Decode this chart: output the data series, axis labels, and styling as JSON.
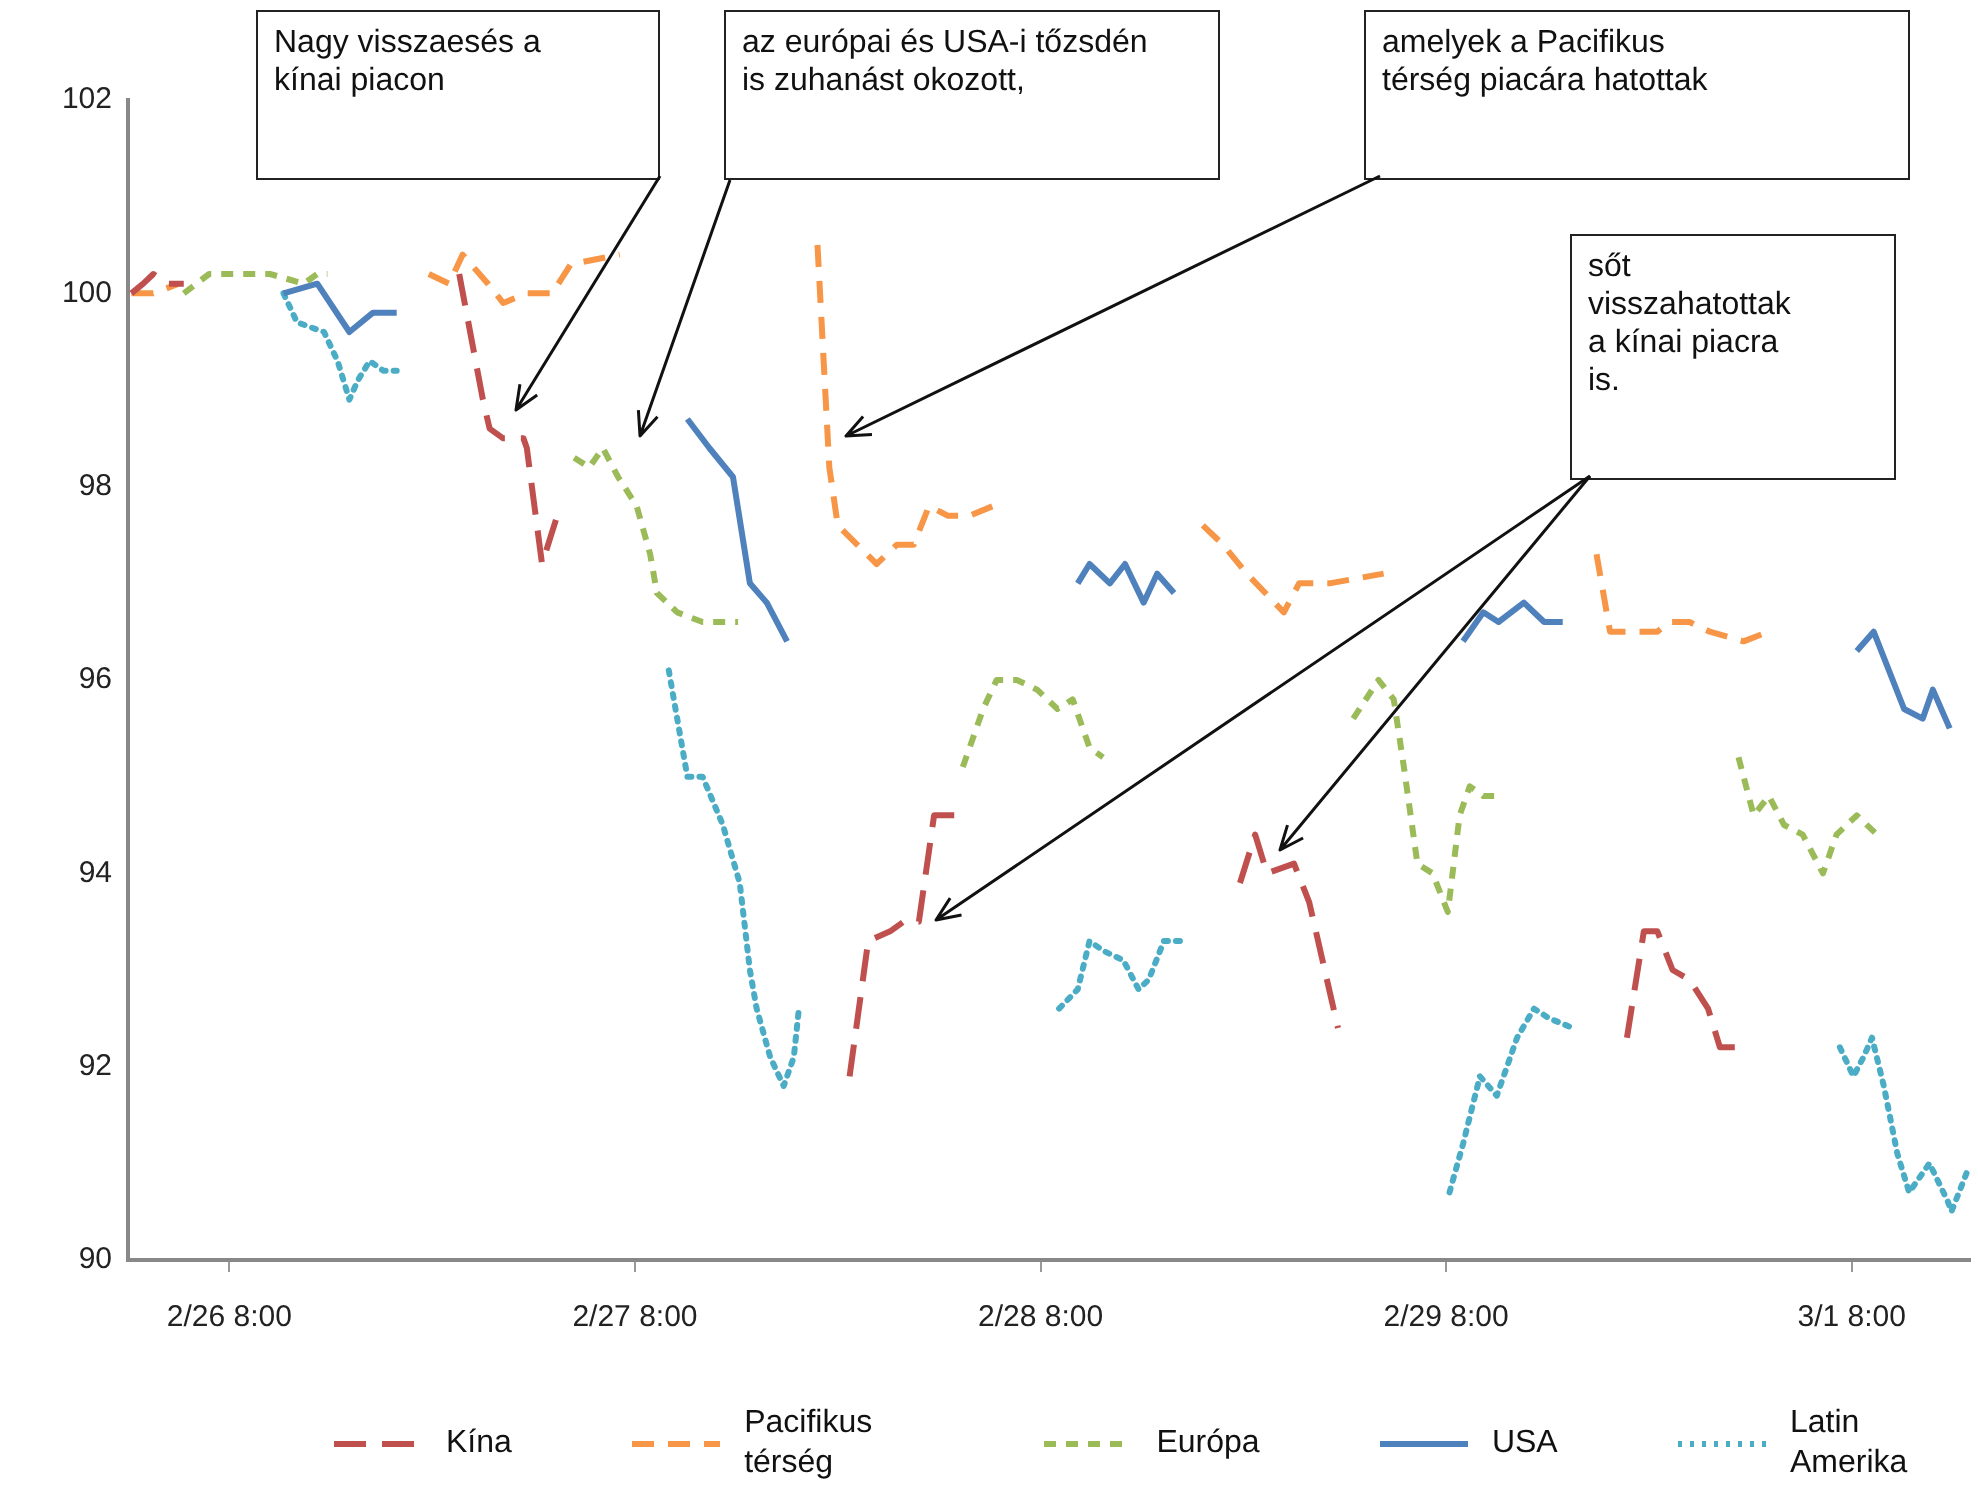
{
  "chart_data": {
    "type": "line",
    "xlim": [
      "--02-26T02:00",
      "--03-01T15:00"
    ],
    "xticks": [
      {
        "value": "--02-26T08:00",
        "label": "2/26 8:00"
      },
      {
        "value": "--02-27T08:00",
        "label": "2/27 8:00"
      },
      {
        "value": "--02-28T08:00",
        "label": "2/28 8:00"
      },
      {
        "value": "--02-29T08:00",
        "label": "2/29 8:00"
      },
      {
        "value": "--03-01T08:00",
        "label": "3/1 8:00"
      }
    ],
    "ylim": [
      90,
      102
    ],
    "yticks": [
      90,
      92,
      94,
      96,
      98,
      100,
      102
    ],
    "grid": false,
    "legend": "bottom",
    "series": [
      {
        "name": "Kína",
        "color": "#c0504d",
        "line_style": "dashed",
        "x": [
          "--02-26T02:12",
          "--02-26T02:54",
          "--02-26T03:30",
          "--02-26T04:18",
          "--02-26T05:18",
          "--02-26T13:00",
          "--02-26T21:36",
          "--02-26T23:00",
          "--02-26T23:24",
          "--02-27T00:12",
          "--02-27T01:24",
          "--02-27T01:36",
          "--02-27T02:30",
          "--02-27T03:24",
          "--02-27T12:00",
          "--02-27T20:42",
          "--02-27T21:48",
          "--02-27T23:06",
          "--02-27T23:54",
          "--02-28T00:48",
          "--02-28T01:42",
          "--02-28T03:24",
          "--02-28T12:00",
          "--02-28T19:48",
          "--02-28T20:42",
          "--02-28T21:24",
          "--02-28T23:00",
          "--02-28T23:54",
          "--02-29T01:36",
          "--02-29T10:00",
          "--02-29T18:42",
          "--02-29T19:42",
          "--02-29T20:30",
          "--02-29T21:24",
          "--02-29T22:24",
          "--02-29T23:30",
          "--03-01T00:12",
          "--03-01T01:36"
        ],
        "values": [
          100.0,
          100.1,
          100.2,
          100.1,
          100.1,
          null,
          100.2,
          98.9,
          98.6,
          98.5,
          98.5,
          98.4,
          97.2,
          97.7,
          null,
          91.9,
          93.3,
          93.4,
          93.5,
          93.5,
          94.6,
          94.6,
          null,
          93.9,
          94.4,
          94.0,
          94.1,
          93.7,
          92.4,
          null,
          92.3,
          93.4,
          93.4,
          93.0,
          92.9,
          92.6,
          92.2,
          92.2
        ]
      },
      {
        "name": "Pacifikus térség",
        "color": "#f79646",
        "line_style": "dashed",
        "x": [
          "--02-26T02:12",
          "--02-26T03:30",
          "--02-26T05:00",
          "--02-26T12:00",
          "--02-26T19:48",
          "--02-26T21:00",
          "--02-26T21:48",
          "--02-26T23:18",
          "--02-27T00:12",
          "--02-27T01:36",
          "--02-27T03:06",
          "--02-27T04:12",
          "--02-27T07:06",
          "--02-27T13:00",
          "--02-27T18:48",
          "--02-27T19:30",
          "--02-27T20:00",
          "--02-27T22:18",
          "--02-27T23:30",
          "--02-28T00:30",
          "--02-28T01:24",
          "--02-28T02:30",
          "--02-28T03:48",
          "--02-28T05:12",
          "--02-28T12:00",
          "--02-28T17:36",
          "--02-28T18:48",
          "--02-28T20:12",
          "--02-28T22:24",
          "--02-28T23:18",
          "--02-29T01:06",
          "--02-29T04:18",
          "--02-29T10:00",
          "--02-29T16:54",
          "--02-29T17:42",
          "--02-29T19:42",
          "--02-29T20:30",
          "--02-29T21:12",
          "--02-29T22:24",
          "--02-29T23:36",
          "--03-01T01:36",
          "--03-01T03:06"
        ],
        "values": [
          100.0,
          100.0,
          100.1,
          null,
          100.2,
          100.1,
          100.4,
          100.1,
          99.9,
          100.0,
          100.0,
          100.3,
          100.4,
          null,
          100.5,
          98.2,
          97.6,
          97.2,
          97.4,
          97.4,
          97.8,
          97.7,
          97.7,
          97.8,
          null,
          97.6,
          97.4,
          97.1,
          96.7,
          97.0,
          97.0,
          97.1,
          null,
          97.3,
          96.5,
          96.5,
          96.5,
          96.6,
          96.6,
          96.5,
          96.4,
          96.5
        ]
      },
      {
        "name": "Európa",
        "color": "#9bbb59",
        "line_style": "dashed",
        "x": [
          "--02-26T05:18",
          "--02-26T06:48",
          "--02-26T08:00",
          "--02-26T10:24",
          "--02-26T12:24",
          "--02-26T13:12",
          "--02-26T13:48",
          "--02-26T21:00",
          "--02-27T04:24",
          "--02-27T05:18",
          "--02-27T06:06",
          "--02-27T07:00",
          "--02-27T08:06",
          "--02-27T08:54",
          "--02-27T09:18",
          "--02-27T10:30",
          "--02-27T12:00",
          "--02-27T14:06",
          "--02-27T21:00",
          "--02-28T03:24",
          "--02-28T04:36",
          "--02-28T05:24",
          "--02-28T06:36",
          "--02-28T07:48",
          "--02-28T09:00",
          "--02-28T09:54",
          "--02-28T10:54",
          "--02-28T11:42",
          "--02-28T19:00",
          "--02-29T02:30",
          "--02-29T04:00",
          "--02-29T04:54",
          "--02-29T05:30",
          "--02-29T06:18",
          "--02-29T07:12",
          "--02-29T08:06",
          "--02-29T08:48",
          "--02-29T09:24",
          "--02-29T10:12",
          "--02-29T11:06",
          "--02-29T18:00",
          "--03-01T01:18",
          "--03-01T02:12",
          "--03-01T03:06",
          "--03-01T04:00",
          "--03-01T05:06",
          "--03-01T06:18",
          "--03-01T07:06",
          "--03-01T08:18",
          "--03-01T09:30"
        ],
        "values": [
          100.0,
          100.2,
          100.2,
          100.2,
          100.1,
          100.2,
          100.2,
          null,
          98.3,
          98.2,
          98.4,
          98.1,
          97.8,
          97.3,
          96.9,
          96.7,
          96.6,
          96.6,
          null,
          95.1,
          95.7,
          96.0,
          96.0,
          95.9,
          95.7,
          95.8,
          95.3,
          95.2,
          null,
          95.6,
          96.0,
          95.8,
          95.1,
          94.1,
          94.0,
          93.6,
          94.6,
          94.9,
          94.8,
          94.8,
          null,
          95.2,
          94.6,
          94.8,
          94.5,
          94.4,
          94.0,
          94.4,
          94.6,
          94.4
        ]
      },
      {
        "name": "USA",
        "color": "#4f81bd",
        "line_style": "solid",
        "x": [
          "--02-26T11:12",
          "--02-26T13:12",
          "--02-26T15:06",
          "--02-26T16:30",
          "--02-26T17:54",
          "--02-27T02:00",
          "--02-27T11:06",
          "--02-27T12:24",
          "--02-27T13:48",
          "--02-27T14:48",
          "--02-27T15:48",
          "--02-27T17:00",
          "--02-28T02:00",
          "--02-28T10:12",
          "--02-28T10:54",
          "--02-28T12:06",
          "--02-28T13:00",
          "--02-28T14:06",
          "--02-28T14:54",
          "--02-28T15:54",
          "--02-29T00:00",
          "--02-29T09:00",
          "--02-29T10:12",
          "--02-29T11:06",
          "--02-29T12:36",
          "--02-29T13:48",
          "--02-29T14:54",
          "--02-29T23:00",
          "--03-01T08:18",
          "--03-01T09:18",
          "--03-01T11:06",
          "--03-01T12:12",
          "--03-01T12:48",
          "--03-01T13:48"
        ],
        "values": [
          100.0,
          100.1,
          99.6,
          99.8,
          99.8,
          null,
          98.7,
          98.4,
          98.1,
          97.0,
          96.8,
          96.4,
          null,
          97.0,
          97.2,
          97.0,
          97.2,
          96.8,
          97.1,
          96.9,
          null,
          96.4,
          96.7,
          96.6,
          96.8,
          96.6,
          96.6,
          null,
          96.3,
          96.5,
          95.7,
          95.6,
          95.9,
          95.5
        ]
      },
      {
        "name": "Latin Amerika",
        "color": "#4bacc6",
        "line_style": "dotted",
        "x": [
          "--02-26T11:12",
          "--02-26T12:00",
          "--02-26T13:36",
          "--02-26T14:24",
          "--02-26T15:06",
          "--02-26T15:36",
          "--02-26T16:18",
          "--02-26T17:06",
          "--02-26T17:54",
          "--02-27T02:00",
          "--02-27T10:00",
          "--02-27T11:06",
          "--02-27T12:00",
          "--02-27T13:12",
          "--02-27T14:12",
          "--02-27T14:48",
          "--02-27T15:12",
          "--02-27T16:00",
          "--02-27T16:48",
          "--02-27T17:24",
          "--02-27T17:42",
          "--02-28T02:00",
          "--02-28T09:06",
          "--02-28T10:12",
          "--02-28T10:54",
          "--02-28T11:42",
          "--02-28T12:54",
          "--02-28T13:48",
          "--02-28T14:24",
          "--02-28T15:18",
          "--02-28T16:24",
          "--02-29T00:00",
          "--02-29T08:12",
          "--02-29T09:00",
          "--02-29T10:00",
          "--02-29T11:00",
          "--02-29T12:12",
          "--02-29T13:12",
          "--02-29T14:06",
          "--02-29T15:30",
          "--02-29T23:00",
          "--03-01T07:18",
          "--03-01T08:06",
          "--03-01T08:42",
          "--03-01T09:12",
          "--03-01T09:54",
          "--03-01T10:42",
          "--03-01T11:24",
          "--03-01T12:36",
          "--03-01T13:42",
          "--03-01T13:54",
          "--03-01T14:48"
        ],
        "values": [
          100.0,
          99.7,
          99.6,
          99.3,
          98.9,
          99.1,
          99.3,
          99.2,
          99.2,
          null,
          96.1,
          95.0,
          95.0,
          94.5,
          93.9,
          93.0,
          92.6,
          92.1,
          91.8,
          92.1,
          92.6,
          null,
          92.6,
          92.8,
          93.3,
          93.2,
          93.1,
          92.8,
          92.9,
          93.3,
          93.3,
          null,
          90.7,
          91.2,
          91.9,
          91.7,
          92.3,
          92.6,
          92.5,
          92.4,
          null,
          92.2,
          91.9,
          92.1,
          92.3,
          91.8,
          91.1,
          90.7,
          91.0,
          90.6,
          90.5,
          90.9
        ]
      }
    ],
    "annotations": [
      "Nagy visszaesés a kínai piacon",
      "az európai és USA-i tőzsdén is zuhanást okozott,",
      "amelyek a Pacifikus térség piacára hatottak",
      "sőt visszahatottak a kínai piacra is."
    ]
  }
}
